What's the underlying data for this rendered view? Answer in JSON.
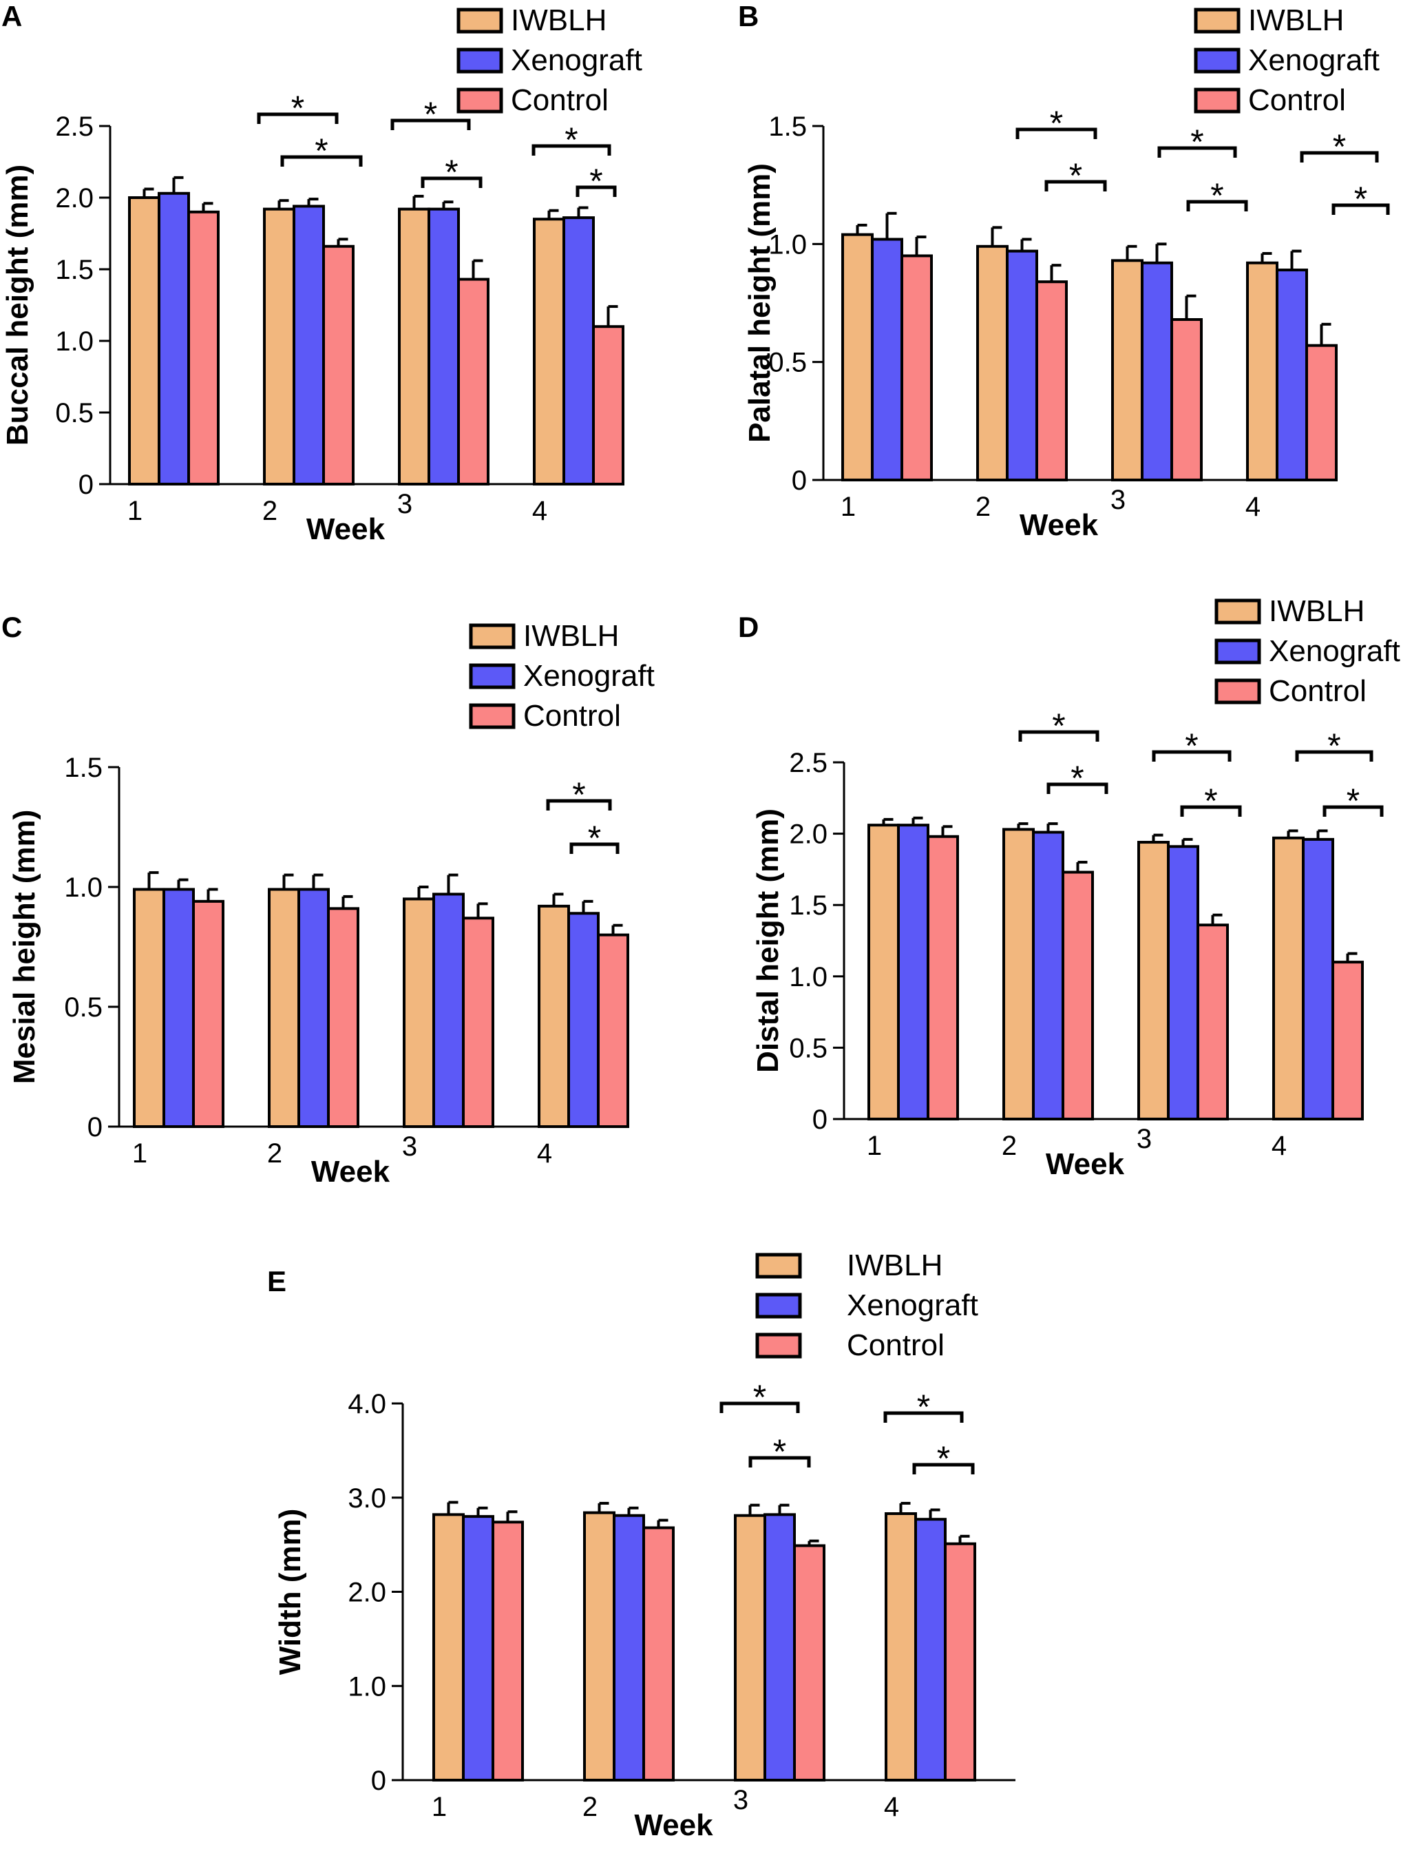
{
  "colors": {
    "IWBLH": "#F2B77E",
    "Xenograft": "#5C59F7",
    "Control": "#FA8585"
  },
  "chart_data": [
    {
      "panel": "A",
      "type": "bar",
      "categories": [
        "1",
        "2",
        "3",
        "4"
      ],
      "xlabel": "Week",
      "ylabel": "Buccal height (mm)",
      "ylim": [
        0,
        2.5
      ],
      "yticks": [
        "0",
        "0.5",
        "1.0",
        "1.5",
        "2.0",
        "2.5"
      ],
      "series": [
        {
          "name": "IWBLH",
          "values": [
            2.0,
            1.92,
            1.92,
            1.85
          ],
          "errors": [
            0.06,
            0.06,
            0.09,
            0.06
          ]
        },
        {
          "name": "Xenograft",
          "values": [
            2.03,
            1.94,
            1.92,
            1.86
          ],
          "errors": [
            0.11,
            0.05,
            0.05,
            0.07
          ]
        },
        {
          "name": "Control",
          "values": [
            1.9,
            1.66,
            1.43,
            1.1
          ],
          "errors": [
            0.06,
            0.05,
            0.13,
            0.14
          ]
        }
      ],
      "significance": [
        {
          "week": "2",
          "marks": [
            "*",
            "*"
          ]
        },
        {
          "week": "3",
          "marks": [
            "*",
            "*"
          ]
        },
        {
          "week": "4",
          "marks": [
            "*",
            "*"
          ]
        }
      ]
    },
    {
      "panel": "B",
      "type": "bar",
      "categories": [
        "1",
        "2",
        "3",
        "4"
      ],
      "xlabel": "Week",
      "ylabel": "Palatal height (mm)",
      "ylim": [
        0,
        1.5
      ],
      "yticks": [
        "0",
        "0.5",
        "1.0",
        "1.5"
      ],
      "series": [
        {
          "name": "IWBLH",
          "values": [
            1.04,
            0.99,
            0.93,
            0.92
          ],
          "errors": [
            0.04,
            0.08,
            0.06,
            0.04
          ]
        },
        {
          "name": "Xenograft",
          "values": [
            1.02,
            0.97,
            0.92,
            0.89
          ],
          "errors": [
            0.11,
            0.05,
            0.08,
            0.08
          ]
        },
        {
          "name": "Control",
          "values": [
            0.95,
            0.84,
            0.68,
            0.57
          ],
          "errors": [
            0.08,
            0.07,
            0.1,
            0.09
          ]
        }
      ],
      "significance": [
        {
          "week": "2",
          "marks": [
            "*",
            "*"
          ]
        },
        {
          "week": "3",
          "marks": [
            "*",
            "*"
          ]
        },
        {
          "week": "4",
          "marks": [
            "*",
            "*"
          ]
        }
      ]
    },
    {
      "panel": "C",
      "type": "bar",
      "categories": [
        "1",
        "2",
        "3",
        "4"
      ],
      "xlabel": "Week",
      "ylabel": "Mesial height (mm)",
      "ylim": [
        0,
        1.5
      ],
      "yticks": [
        "0",
        "0.5",
        "1.0",
        "1.5"
      ],
      "series": [
        {
          "name": "IWBLH",
          "values": [
            0.99,
            0.99,
            0.95,
            0.92
          ],
          "errors": [
            0.07,
            0.06,
            0.05,
            0.05
          ]
        },
        {
          "name": "Xenograft",
          "values": [
            0.99,
            0.99,
            0.97,
            0.89
          ],
          "errors": [
            0.04,
            0.06,
            0.08,
            0.05
          ]
        },
        {
          "name": "Control",
          "values": [
            0.94,
            0.91,
            0.87,
            0.8
          ],
          "errors": [
            0.05,
            0.05,
            0.06,
            0.04
          ]
        }
      ],
      "significance": [
        {
          "week": "4",
          "marks": [
            "*",
            "*"
          ]
        }
      ]
    },
    {
      "panel": "D",
      "type": "bar",
      "categories": [
        "1",
        "2",
        "3",
        "4"
      ],
      "xlabel": "Week",
      "ylabel": "Distal height (mm)",
      "ylim": [
        0,
        2.5
      ],
      "yticks": [
        "0",
        "0.5",
        "1.0",
        "1.5",
        "2.0",
        "2.5"
      ],
      "series": [
        {
          "name": "IWBLH",
          "values": [
            2.06,
            2.03,
            1.94,
            1.97
          ],
          "errors": [
            0.04,
            0.04,
            0.05,
            0.05
          ]
        },
        {
          "name": "Xenograft",
          "values": [
            2.06,
            2.01,
            1.91,
            1.96
          ],
          "errors": [
            0.05,
            0.06,
            0.05,
            0.06
          ]
        },
        {
          "name": "Control",
          "values": [
            1.98,
            1.73,
            1.36,
            1.1
          ],
          "errors": [
            0.07,
            0.07,
            0.07,
            0.06
          ]
        }
      ],
      "significance": [
        {
          "week": "2",
          "marks": [
            "*",
            "*"
          ]
        },
        {
          "week": "3",
          "marks": [
            "*",
            "*"
          ]
        },
        {
          "week": "4",
          "marks": [
            "*",
            "*"
          ]
        }
      ]
    },
    {
      "panel": "E",
      "type": "bar",
      "categories": [
        "1",
        "2",
        "3",
        "4"
      ],
      "xlabel": "Week",
      "ylabel": "Width (mm)",
      "ylim": [
        0,
        4.0
      ],
      "yticks": [
        "0",
        "1.0",
        "2.0",
        "3.0",
        "4.0"
      ],
      "series": [
        {
          "name": "IWBLH",
          "values": [
            2.82,
            2.84,
            2.81,
            2.83
          ],
          "errors": [
            0.13,
            0.1,
            0.11,
            0.11
          ]
        },
        {
          "name": "Xenograft",
          "values": [
            2.8,
            2.81,
            2.82,
            2.77
          ],
          "errors": [
            0.09,
            0.08,
            0.1,
            0.1
          ]
        },
        {
          "name": "Control",
          "values": [
            2.74,
            2.68,
            2.49,
            2.51
          ],
          "errors": [
            0.11,
            0.08,
            0.05,
            0.08
          ]
        }
      ],
      "significance": [
        {
          "week": "3",
          "marks": [
            "*",
            "*"
          ]
        },
        {
          "week": "4",
          "marks": [
            "*",
            "*"
          ]
        }
      ]
    }
  ]
}
